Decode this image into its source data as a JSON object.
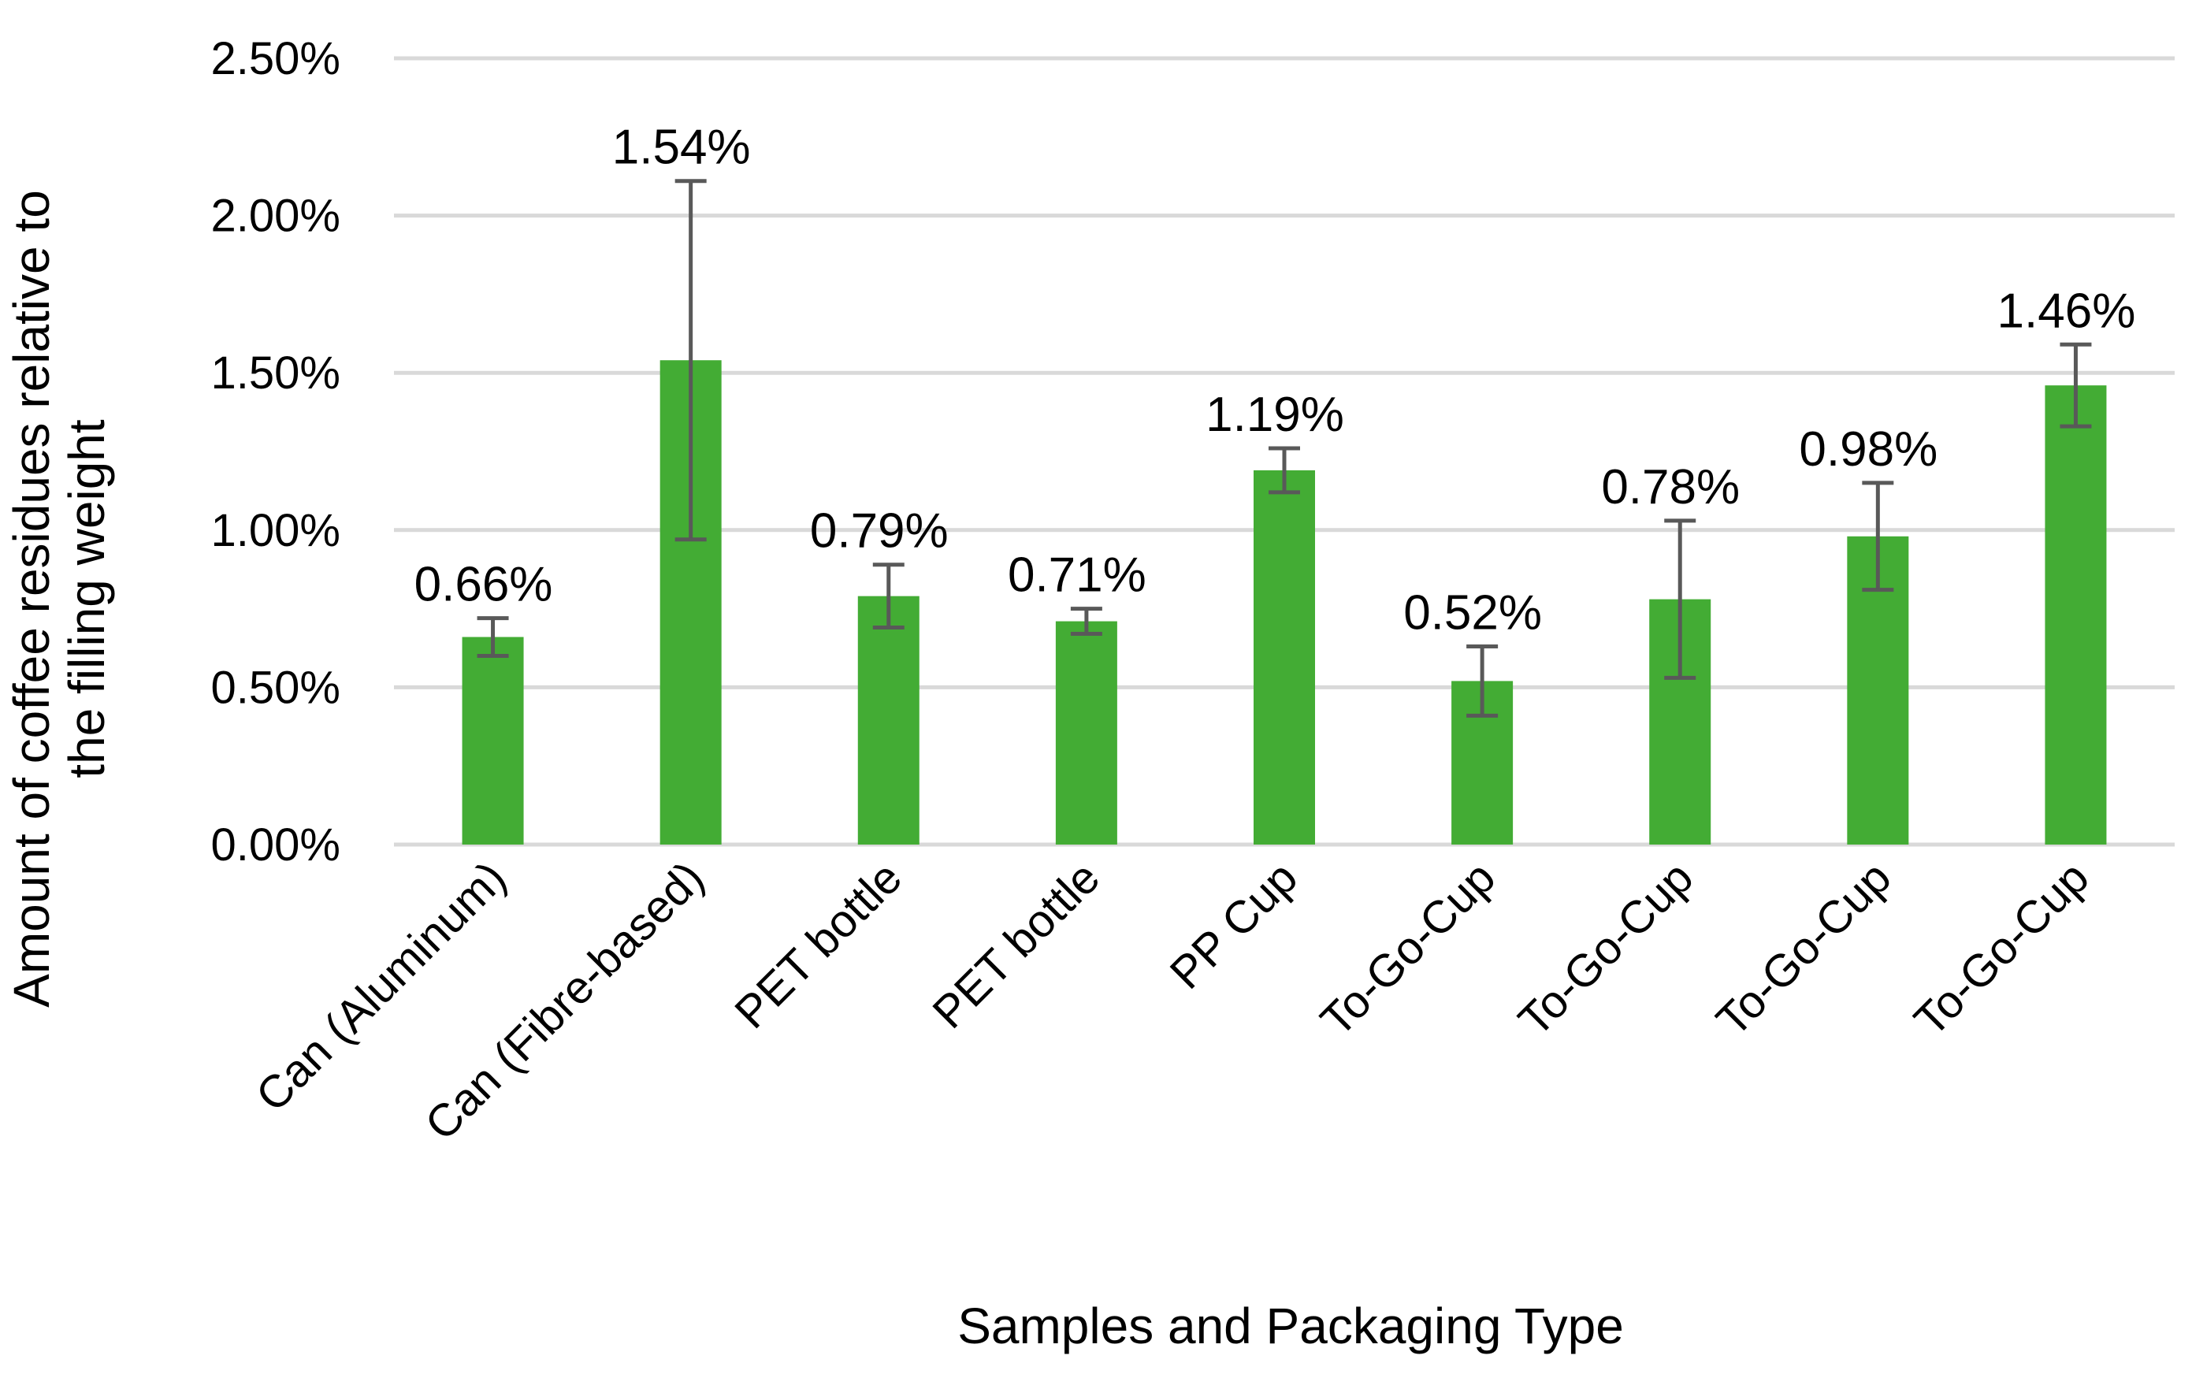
{
  "chart_data": {
    "type": "bar",
    "title": "",
    "xlabel": "Samples and Packaging Type",
    "ylabel_line1": "Amount of coffee residues relative to",
    "ylabel_line2": "the filling weight",
    "categories": [
      "Can (Aluminum)",
      "Can (Fibre-based)",
      "PET bottle",
      "PET bottle",
      "PP Cup",
      "To-Go-Cup",
      "To-Go-Cup",
      "To-Go-Cup",
      "To-Go-Cup"
    ],
    "values": [
      0.66,
      1.54,
      0.79,
      0.71,
      1.19,
      0.52,
      0.78,
      0.98,
      1.46
    ],
    "errors": [
      0.06,
      0.57,
      0.1,
      0.04,
      0.07,
      0.11,
      0.25,
      0.17,
      0.13
    ],
    "data_labels": [
      "0.66%",
      "1.54%",
      "0.79%",
      "0.71%",
      "1.19%",
      "0.52%",
      "0.78%",
      "0.98%",
      "1.46%"
    ],
    "ylim": [
      0,
      2.5
    ],
    "yticks": [
      0,
      0.5,
      1.0,
      1.5,
      2.0,
      2.5
    ],
    "ytick_labels": [
      "0.00%",
      "0.50%",
      "1.00%",
      "1.50%",
      "2.00%",
      "2.50%"
    ],
    "grid": true,
    "colors": {
      "bar": "#43AC34",
      "grid": "#D9D9D9",
      "error_bar": "#595959"
    }
  }
}
